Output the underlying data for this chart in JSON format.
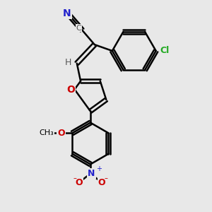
{
  "bg_color": "#e8e8e8",
  "bond_color": "#000000",
  "bond_width": 1.8,
  "figsize": [
    3.0,
    3.0
  ],
  "dpi": 100,
  "xlim": [
    0,
    10
  ],
  "ylim": [
    0,
    10
  ]
}
